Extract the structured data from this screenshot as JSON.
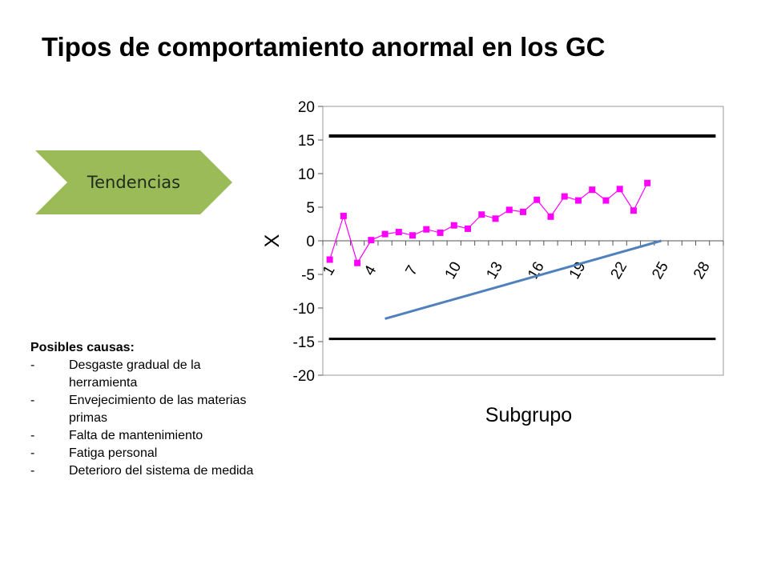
{
  "slide": {
    "title": "Tipos de comportamiento anormal en los GC",
    "chevron_label": "Tendencias",
    "chevron_color": "#9bbb59"
  },
  "causes": {
    "title": "Posibles causas:",
    "items": [
      "Desgaste gradual de la herramienta",
      "Envejecimiento de las materias primas",
      "Falta de mantenimiento",
      "Fatiga personal",
      "Deterioro del sistema de medida"
    ]
  },
  "chart_data": {
    "type": "line",
    "xlabel": "Subgrupo",
    "ylabel": "X",
    "ylim": [
      -20,
      20
    ],
    "yticks": [
      20,
      15,
      10,
      5,
      0,
      -5,
      -10,
      -15,
      -20
    ],
    "xtick_labels": [
      1,
      4,
      7,
      10,
      13,
      16,
      19,
      22,
      25,
      28
    ],
    "x_categories": 29,
    "grid": false,
    "series": [
      {
        "color": "#ff00ff",
        "marker": "square",
        "x": [
          1,
          2,
          3,
          4,
          5,
          6,
          7,
          8,
          9,
          10,
          11,
          12,
          13,
          14,
          15,
          16,
          17,
          18,
          19,
          20,
          21,
          22,
          23,
          24
        ],
        "values": [
          -2.8,
          3.7,
          -3.3,
          0.1,
          1.0,
          1.3,
          0.8,
          1.7,
          1.2,
          2.3,
          1.8,
          3.9,
          3.3,
          4.6,
          4.3,
          6.1,
          3.6,
          6.6,
          6.0,
          7.6,
          6.0,
          7.7,
          4.5,
          8.6
        ]
      }
    ],
    "reference_lines": [
      {
        "type": "upper_limit",
        "value": 15.6,
        "x_start": 1,
        "x_end": 29,
        "color": "#000000"
      },
      {
        "type": "lower_limit",
        "value": -14.6,
        "x_start": 1,
        "x_end": 29,
        "color": "#000000"
      },
      {
        "type": "trend",
        "x_start": 5,
        "y_start": -11.6,
        "x_end": 25,
        "y_end": 0,
        "color": "#4f81bd"
      }
    ]
  }
}
